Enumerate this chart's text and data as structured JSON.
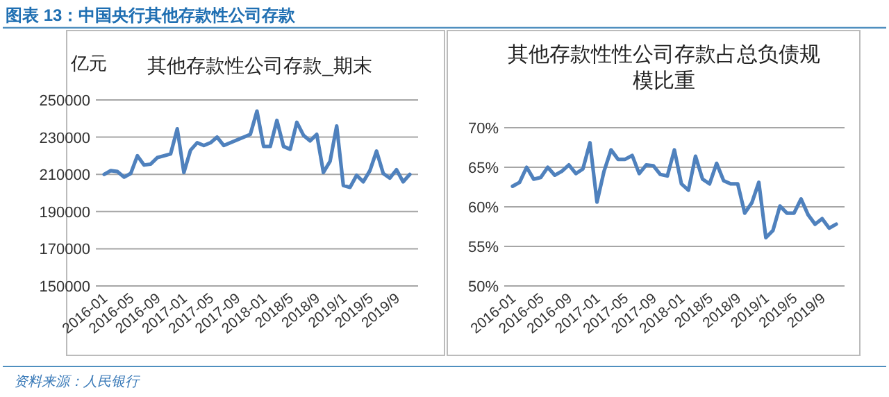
{
  "chart_data": [
    {
      "type": "line",
      "title": "其他存款性公司存款_期末",
      "ylabel": "亿元",
      "annotations": [
        "图表 13：中国央行其他存款性公司存款",
        "资料来源：人民银行"
      ],
      "categories": [
        "2016-01",
        null,
        null,
        null,
        "2016-05",
        null,
        null,
        null,
        "2016-09",
        null,
        null,
        null,
        "2017-01",
        null,
        null,
        null,
        "2017-05",
        null,
        null,
        null,
        "2017-09",
        null,
        null,
        null,
        "2018-01",
        null,
        null,
        null,
        "2018/5",
        null,
        null,
        null,
        "2018/9",
        null,
        null,
        null,
        "2019/1",
        null,
        null,
        null,
        "2019/5",
        null,
        null,
        null,
        "2019/9",
        null,
        null
      ],
      "series": [
        {
          "color": "#4f81bd",
          "values": [
            210000,
            212000,
            211500,
            208500,
            210500,
            220000,
            215000,
            215500,
            219000,
            220000,
            221000,
            234500,
            211000,
            223000,
            227000,
            225500,
            227000,
            230000,
            225500,
            227000,
            228500,
            230000,
            231500,
            244000,
            225000,
            225000,
            239000,
            225000,
            223500,
            238000,
            231000,
            228000,
            231500,
            211000,
            217000,
            236000,
            204000,
            203000,
            209500,
            206000,
            212000,
            222500,
            210500,
            208000,
            212500,
            206000,
            210000
          ]
        }
      ],
      "ylim": [
        150000,
        250000
      ],
      "yticks": [
        150000,
        170000,
        190000,
        210000,
        230000,
        250000
      ],
      "grid": "y",
      "marker": "none",
      "line_style": "solid"
    },
    {
      "type": "line",
      "title": "其他存款性性公司存款占总负债规模比重",
      "categories": [
        "2016-01",
        null,
        null,
        null,
        "2016-05",
        null,
        null,
        null,
        "2016-09",
        null,
        null,
        null,
        "2017-01",
        null,
        null,
        null,
        "2017-05",
        null,
        null,
        null,
        "2017-09",
        null,
        null,
        null,
        "2018-01",
        null,
        null,
        null,
        "2018/5",
        null,
        null,
        null,
        "2018/9",
        null,
        null,
        null,
        "2019/1",
        null,
        null,
        null,
        "2019/5",
        null,
        null,
        null,
        "2019/9",
        null,
        null
      ],
      "series": [
        {
          "color": "#4f81bd",
          "values": [
            62.6,
            63.1,
            65.0,
            63.5,
            63.7,
            65.0,
            64.0,
            64.5,
            65.3,
            64.2,
            64.8,
            68.1,
            60.6,
            64.5,
            67.2,
            66.0,
            66.0,
            66.5,
            64.2,
            65.3,
            65.2,
            64.1,
            63.9,
            67.2,
            62.9,
            62.1,
            66.4,
            63.5,
            62.9,
            65.5,
            63.3,
            62.9,
            62.9,
            59.2,
            60.5,
            63.1,
            56.1,
            57.0,
            60.1,
            59.2,
            59.2,
            61.0,
            59.0,
            57.8,
            58.5,
            57.3,
            57.8
          ]
        }
      ],
      "ylim": [
        50,
        70
      ],
      "yticks": [
        {
          "value": 50,
          "label": "50%"
        },
        {
          "value": 55,
          "label": "55%"
        },
        {
          "value": 60,
          "label": "60%"
        },
        {
          "value": 65,
          "label": "65%"
        },
        {
          "value": 70,
          "label": "70%"
        }
      ],
      "grid": "y",
      "marker": "none",
      "line_style": "solid"
    }
  ]
}
